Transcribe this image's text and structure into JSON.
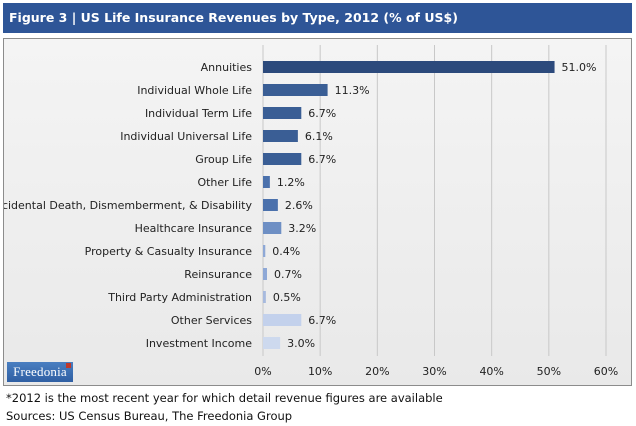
{
  "header": {
    "title": "Figure 3 | US Life Insurance Revenues by Type, 2012 (% of US$)"
  },
  "logo": {
    "text": "Freedonia"
  },
  "footer": {
    "note": "*2012 is the most recent year for which detail revenue figures are available",
    "sources": "Sources: US Census Bureau, The Freedonia Group"
  },
  "chart_data": {
    "type": "bar",
    "orientation": "horizontal",
    "title": "Figure 3 | US Life Insurance Revenues by Type, 2012 (% of US$)",
    "categories": [
      "Annuities",
      "Individual Whole Life",
      "Individual Term Life",
      "Individual Universal Life",
      "Group Life",
      "Other Life",
      "Accidental Death, Dismemberment, & Disability",
      "Healthcare Insurance",
      "Property & Casualty Insurance",
      "Reinsurance",
      "Third Party Administration",
      "Other Services",
      "Investment Income"
    ],
    "values": [
      51.0,
      11.3,
      6.7,
      6.1,
      6.7,
      1.2,
      2.6,
      3.2,
      0.4,
      0.7,
      0.5,
      6.7,
      3.0
    ],
    "value_labels": [
      "51.0%",
      "11.3%",
      "6.7%",
      "6.1%",
      "6.7%",
      "1.2%",
      "2.6%",
      "3.2%",
      "0.4%",
      "0.7%",
      "0.5%",
      "6.7%",
      "3.0%"
    ],
    "bar_colors": [
      "#2c4a7c",
      "#3a5e95",
      "#3a5e95",
      "#3a5e95",
      "#3a5e95",
      "#4b71ac",
      "#4b71ac",
      "#6e8fc4",
      "#8ea8d6",
      "#8ea8d6",
      "#a7bade",
      "#c3d1ec",
      "#cdd9ee"
    ],
    "xlim": [
      0,
      60
    ],
    "xticks": [
      0,
      10,
      20,
      30,
      40,
      50,
      60
    ],
    "xtick_labels": [
      "0%",
      "10%",
      "20%",
      "30%",
      "40%",
      "50%",
      "60%"
    ],
    "grid": true,
    "legend": false
  }
}
